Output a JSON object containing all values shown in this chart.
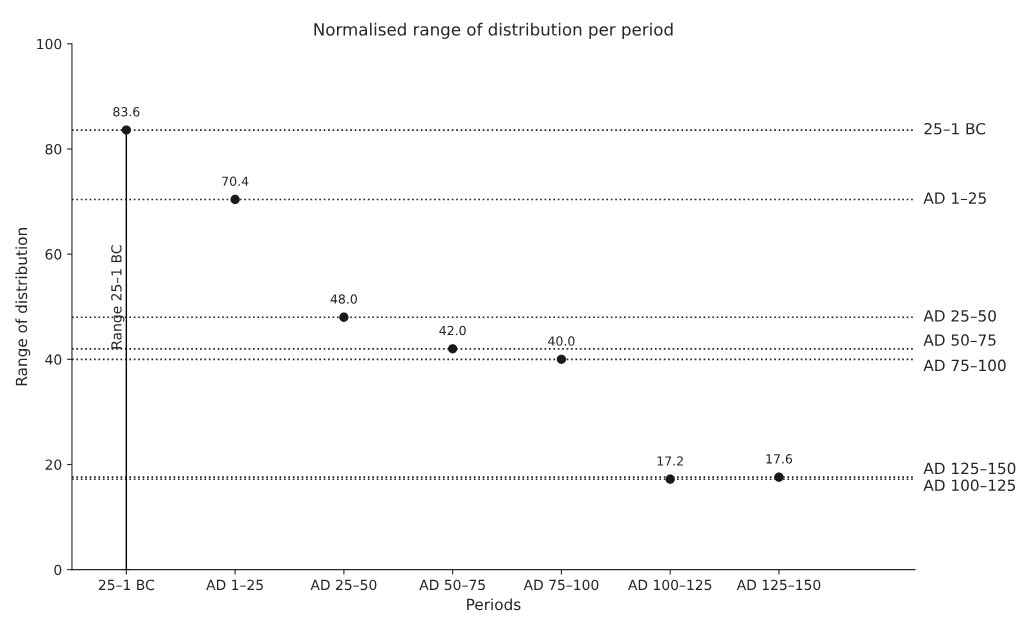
{
  "chart_data": {
    "type": "scatter",
    "title": "Normalised range of distribution per period",
    "xlabel": "Periods",
    "ylabel": "Range of distribution",
    "categories": [
      "25–1 BC",
      "AD 1–25",
      "AD 25–50",
      "AD 50–75",
      "AD 75–100",
      "AD 100–125",
      "AD 125–150"
    ],
    "values": [
      83.6,
      70.4,
      48.0,
      42.0,
      40.0,
      17.2,
      17.6
    ],
    "color": "#1a1a1a",
    "marker": "circle",
    "value_labels": [
      "83.6",
      "70.4",
      "48.0",
      "42.0",
      "40.0",
      "17.2",
      "17.6"
    ],
    "errors": [
      [
        0,
        83.6
      ],
      null,
      null,
      null,
      null,
      null,
      null
    ],
    "ylim": [
      0,
      100
    ],
    "yticks": [
      0,
      20,
      40,
      60,
      80,
      100
    ],
    "grid": false,
    "ref_lines": [
      {
        "axis": "y",
        "value": 83.6,
        "label": "25–1 BC",
        "line_style": "dotted"
      },
      {
        "axis": "y",
        "value": 70.4,
        "label": "AD 1–25",
        "line_style": "dotted"
      },
      {
        "axis": "y",
        "value": 48.0,
        "label": "AD 25–50",
        "line_style": "dotted"
      },
      {
        "axis": "y",
        "value": 42.0,
        "label": "AD 50–75",
        "line_style": "dotted"
      },
      {
        "axis": "y",
        "value": 40.0,
        "label": "AD 75–100",
        "line_style": "dotted"
      },
      {
        "axis": "y",
        "value": 17.2,
        "label": "AD 100–125",
        "line_style": "dotted"
      },
      {
        "axis": "y",
        "value": 17.6,
        "label": "AD 125–150",
        "line_style": "dotted"
      }
    ],
    "annotations": [
      "Range 25–1 BC"
    ]
  }
}
